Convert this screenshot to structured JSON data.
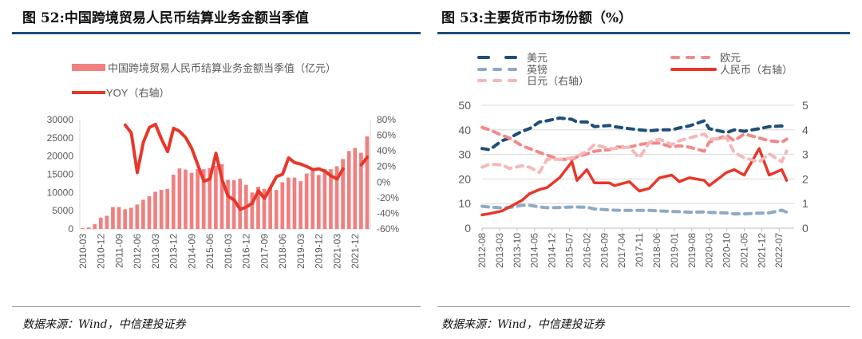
{
  "left": {
    "title": "图 52:中国跨境贸易人民币结算业务金额当季值",
    "source": "数据来源：Wind，中信建投证券"
  },
  "right": {
    "title": "图 53:主要货币市场份额（%）",
    "source": "数据来源：Wind，中信建投证券"
  },
  "chart_data": [
    {
      "type": "bar+line",
      "series": [
        {
          "name": "中国跨境贸易人民币结算业务金额当季值（亿元）",
          "type": "bar",
          "axis": "left",
          "color": "#f08080",
          "values": [
            200,
            400,
            1300,
            3100,
            3600,
            6000,
            6000,
            5400,
            5800,
            6700,
            8000,
            9000,
            10200,
            10700,
            11000,
            14900,
            16600,
            16300,
            15400,
            16400,
            16400,
            16700,
            17300,
            17800,
            13500,
            13400,
            13800,
            12100,
            10000,
            11600,
            11000,
            11300,
            10700,
            12800,
            14100,
            14100,
            13100,
            15200,
            16000,
            14800,
            16400,
            16400,
            17200,
            19200,
            21400,
            22200,
            20900,
            25400
          ]
        },
        {
          "name": "YOY（右轴）",
          "type": "line",
          "axis": "right",
          "color": "#e8372a",
          "values": [
            null,
            null,
            null,
            null,
            null,
            null,
            null,
            73,
            63,
            12,
            51,
            70,
            74,
            55,
            39,
            69,
            65,
            57,
            43,
            22,
            1,
            4,
            37,
            3,
            -18,
            -23,
            -35,
            -32,
            -27,
            -11,
            -21,
            -7,
            7,
            10,
            31,
            25,
            23,
            20,
            16,
            17,
            14,
            8,
            4,
            17,
            null,
            null,
            22,
            32
          ]
        }
      ],
      "x_tick_labels": [
        "2010-03",
        "2010-12",
        "2011-09",
        "2012-06",
        "2013-03",
        "2013-12",
        "2014-09",
        "2015-06",
        "2016-03",
        "2016-12",
        "2017-09",
        "2018-06",
        "2019-03",
        "2019-12",
        "2021-03",
        "2021-12"
      ],
      "y_left": {
        "ticks": [
          "0",
          "5000",
          "10000",
          "15000",
          "20000",
          "25000",
          "30000"
        ],
        "range": [
          0,
          30000
        ]
      },
      "y_right": {
        "ticks": [
          "-60%",
          "-40%",
          "-20%",
          "0%",
          "20%",
          "40%",
          "60%",
          "80%"
        ],
        "range": [
          -60,
          80
        ]
      },
      "legend": "top",
      "grid": false
    },
    {
      "type": "line",
      "x": [
        "2012-08",
        "2012-11",
        "2013-04",
        "2013-07",
        "2013-12",
        "2014-03",
        "2014-07",
        "2014-10",
        "2015-03",
        "2015-08",
        "2015-10",
        "2016-02",
        "2016-05",
        "2016-11",
        "2017-01",
        "2017-07",
        "2017-11",
        "2018-03",
        "2018-07",
        "2018-12",
        "2019-03",
        "2019-07",
        "2020-01",
        "2020-03",
        "2020-10",
        "2021-01",
        "2021-05",
        "2021-11",
        "2022-03",
        "2022-08",
        "2022-10"
      ],
      "series": [
        {
          "name": "美元",
          "axis": "left",
          "color": "#1f4e79",
          "style": "dash",
          "values": [
            32.4,
            31.9,
            35.6,
            36.7,
            39.4,
            40.5,
            43.2,
            43.7,
            44.8,
            44.3,
            43.2,
            43.2,
            41.3,
            41.8,
            41.3,
            40.5,
            40,
            39.6,
            40,
            40,
            40.8,
            41.6,
            43.7,
            40.5,
            38.9,
            40,
            39.4,
            40.5,
            41.3,
            41.6,
            40.5
          ]
        },
        {
          "name": "欧元",
          "axis": "left",
          "color": "#f08a8a",
          "style": "dash",
          "values": [
            41,
            40,
            37.8,
            36.7,
            33.5,
            32.4,
            30.8,
            29.7,
            28,
            28,
            29,
            30.2,
            31.3,
            31.9,
            33,
            33,
            34,
            34.6,
            34.6,
            33,
            33.5,
            33,
            31.3,
            35,
            37.8,
            35.6,
            38.3,
            36.7,
            35.6,
            35,
            36.2
          ]
        },
        {
          "name": "英镑",
          "axis": "left",
          "color": "#8eaac4",
          "style": "dash",
          "values": [
            8.9,
            8.6,
            8.2,
            8.4,
            9.3,
            9.3,
            8.6,
            8.3,
            8.4,
            8.6,
            8.6,
            8.5,
            7.8,
            7.4,
            7.3,
            7.2,
            7.2,
            7.2,
            7.0,
            6.8,
            6.7,
            6.5,
            6.6,
            6.4,
            6.2,
            5.8,
            5.8,
            6.1,
            6.2,
            7.3,
            6.5
          ]
        },
        {
          "name": "人民币（右轴）",
          "axis": "right",
          "color": "#e8372a",
          "style": "solid",
          "values": [
            0.54,
            0.59,
            0.7,
            0.86,
            1.13,
            1.4,
            1.57,
            1.65,
            2.05,
            2.7,
            1.94,
            2.38,
            1.84,
            1.84,
            1.73,
            1.89,
            1.51,
            1.62,
            2.05,
            2.16,
            1.89,
            2.05,
            1.94,
            1.73,
            2.27,
            2.38,
            2.16,
            3.24,
            2.16,
            2.38,
            1.94
          ]
        },
        {
          "name": "日元（右轴）",
          "axis": "right",
          "color": "#f5b8b8",
          "style": "dash",
          "values": [
            2.48,
            2.6,
            2.57,
            2.43,
            2.54,
            2.48,
            2.27,
            2.8,
            2.8,
            2.86,
            2.92,
            3.13,
            3.4,
            3.24,
            3.24,
            3.3,
            2.86,
            3.5,
            3.62,
            3.4,
            3.56,
            3.67,
            3.83,
            3.62,
            3.67,
            3.08,
            2.86,
            2.7,
            3.02,
            2.7,
            3.13
          ]
        }
      ],
      "x_tick_labels": [
        "2012-08",
        "2013-03",
        "2013-10",
        "2014-05",
        "2014-12",
        "2015-07",
        "2016-02",
        "2016-09",
        "2017-04",
        "2017-11",
        "2018-06",
        "2019-01",
        "2019-08",
        "2020-03",
        "2020-10",
        "2021-05",
        "2021-12",
        "2022-07"
      ],
      "y_left": {
        "ticks": [
          "0",
          "10",
          "20",
          "30",
          "40",
          "50"
        ],
        "range": [
          0,
          50
        ]
      },
      "y_right": {
        "ticks": [
          "0",
          "1",
          "2",
          "3",
          "4",
          "5"
        ],
        "range": [
          0,
          5
        ]
      },
      "legend": "top",
      "grid": true
    }
  ]
}
